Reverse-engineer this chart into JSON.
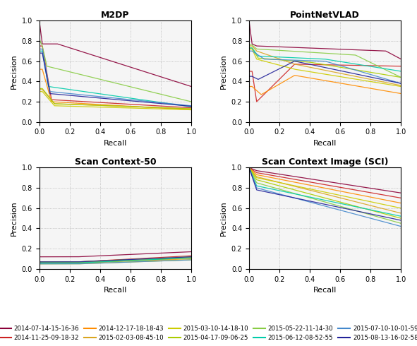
{
  "titles": [
    "M2DP",
    "PointNetVLAD",
    "Scan Context-50",
    "Scan Context Image (SCI)"
  ],
  "xlabel": "Recall",
  "ylabel": "Precision",
  "series_names": [
    "2014-07-14-15-16-36",
    "2014-11-25-09-18-32",
    "2014-12-17-18-18-43",
    "2015-02-03-08-45-10",
    "2015-03-10-14-18-10",
    "2015-04-17-09-06-25",
    "2015-05-22-11-14-30",
    "2015-06-12-08-52-55",
    "2015-07-10-10-01-59",
    "2015-08-13-16-02-58"
  ],
  "series_colors": [
    "#8B0038",
    "#CC2222",
    "#FF8C00",
    "#DAA520",
    "#CCCC00",
    "#AACC00",
    "#88CC44",
    "#00CCAA",
    "#4488CC",
    "#222299"
  ],
  "background_color": "#f5f5f5"
}
